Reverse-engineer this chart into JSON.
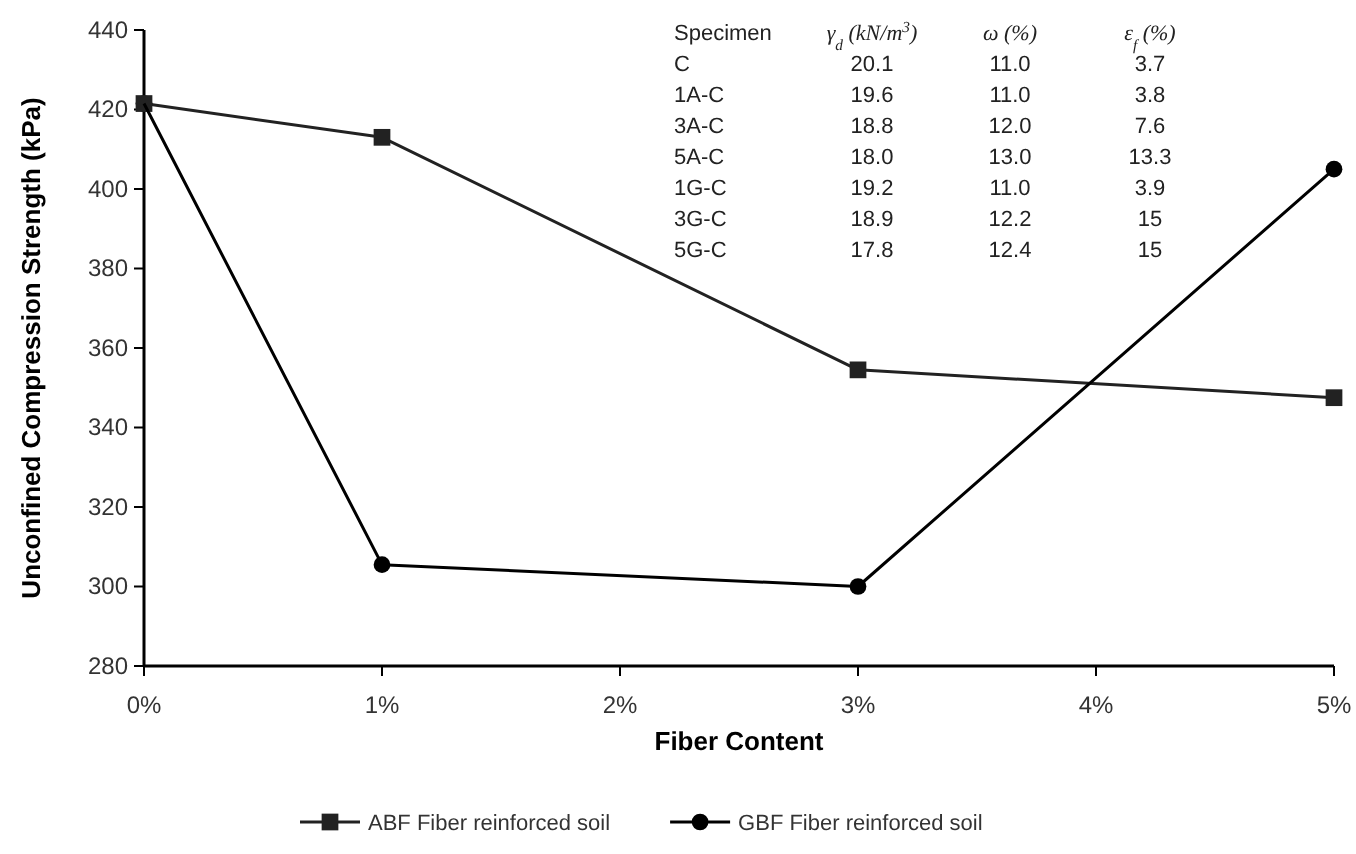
{
  "chart_data": {
    "type": "line",
    "xlabel": "Fiber Content",
    "ylabel": "Unconfined Compression Strength (kPa)",
    "x": [
      0,
      1,
      3,
      5
    ],
    "xlim": [
      0,
      5
    ],
    "xticks": [
      {
        "value": 0,
        "label": "0%"
      },
      {
        "value": 1,
        "label": "1%"
      },
      {
        "value": 2,
        "label": "2%"
      },
      {
        "value": 3,
        "label": "3%"
      },
      {
        "value": 4,
        "label": "4%"
      },
      {
        "value": 5,
        "label": "5%"
      }
    ],
    "ylim": [
      280,
      440
    ],
    "yticks": [
      280,
      300,
      320,
      340,
      360,
      380,
      400,
      420,
      440
    ],
    "series": [
      {
        "name": "ABF Fiber reinforced soil",
        "color": "#222222",
        "marker": "square",
        "values": [
          421.5,
          413,
          354.5,
          347.5
        ]
      },
      {
        "name": "GBF Fiber reinforced soil",
        "color": "#000000",
        "marker": "circle",
        "values": [
          421.5,
          305.5,
          300,
          405
        ]
      }
    ],
    "legend": "bottom",
    "grid": false,
    "line_style": "solid",
    "annotations": [
      "Specimen",
      "γ$_{d}$ (kN/m$^{3}$)",
      "ω (%)",
      "ε$_{f}$ (%)",
      "C",
      "20.1",
      "11.0",
      "3.7",
      "1A-C",
      "19.6",
      "11.0",
      "3.8",
      "3A-C",
      "18.8",
      "12.0",
      "7.6",
      "5A-C",
      "18.0",
      "13.0",
      "13.3",
      "1G-C",
      "19.2",
      "11.0",
      "3.9",
      "3G-C",
      "18.9",
      "12.2",
      "15",
      "5G-C",
      "17.8",
      "12.4",
      "15"
    ]
  }
}
